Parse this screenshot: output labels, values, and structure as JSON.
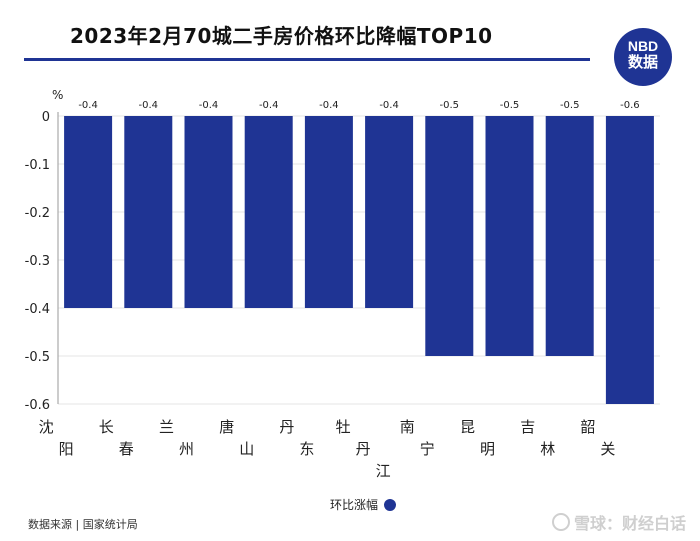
{
  "title": "2023年2月70城二手房价格环比降幅TOP10",
  "logo": {
    "line1": "NBD",
    "line2": "数据"
  },
  "chart_data": {
    "type": "bar",
    "title": "2023年2月70城二手房价格环比降幅TOP10",
    "ylabel": "%",
    "categories": [
      "沈阳",
      "长春",
      "兰州",
      "唐山",
      "丹东",
      "牡丹江",
      "南宁",
      "昆明",
      "吉林",
      "韶关"
    ],
    "values": [
      -0.4,
      -0.4,
      -0.4,
      -0.4,
      -0.4,
      -0.4,
      -0.5,
      -0.5,
      -0.5,
      -0.6
    ],
    "value_labels": [
      "-0.4",
      "-0.4",
      "-0.4",
      "-0.4",
      "-0.4",
      "-0.4",
      "-0.5",
      "-0.5",
      "-0.5",
      "-0.6"
    ],
    "yticks": [
      "0",
      "-0.1",
      "-0.2",
      "-0.3",
      "-0.4",
      "-0.5",
      "-0.6"
    ],
    "ylim": [
      -0.6,
      0
    ],
    "series_name": "环比涨幅",
    "color": "#1f3494"
  },
  "legend_label": "环比涨幅",
  "source": "数据来源 | 国家统计局",
  "watermark": "雪球：财经白话"
}
